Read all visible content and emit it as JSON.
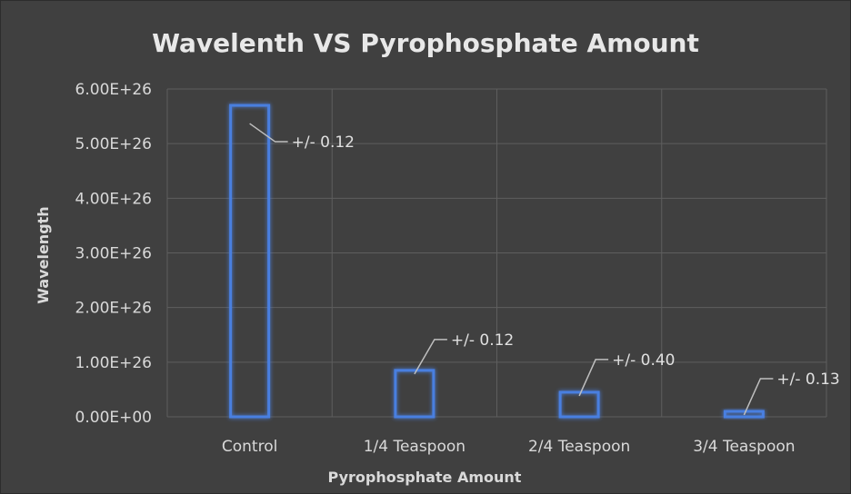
{
  "chart_data": {
    "type": "bar",
    "title": "Wavelenth  VS Pyrophosphate Amount",
    "xlabel": "Pyrophosphate Amount",
    "ylabel": "Wavelength",
    "ylim": [
      0,
      6e+26
    ],
    "yticks": [
      "0.00E+00",
      "1.00E+26",
      "2.00E+26",
      "3.00E+26",
      "4.00E+26",
      "5.00E+26",
      "6.00E+26"
    ],
    "categories": [
      "Control",
      "1/4 Teaspoon",
      "2/4 Teaspoon",
      "3/4 Teaspoon"
    ],
    "values": [
      5.7e+26,
      8.5e+25,
      4.5e+25,
      1e+25
    ],
    "error_labels": [
      "+/- 0.12",
      "+/- 0.12",
      "+/- 0.40",
      "+/- 0.13"
    ],
    "bar_color": "#4a7fe0",
    "grid": true,
    "legend": "none"
  }
}
